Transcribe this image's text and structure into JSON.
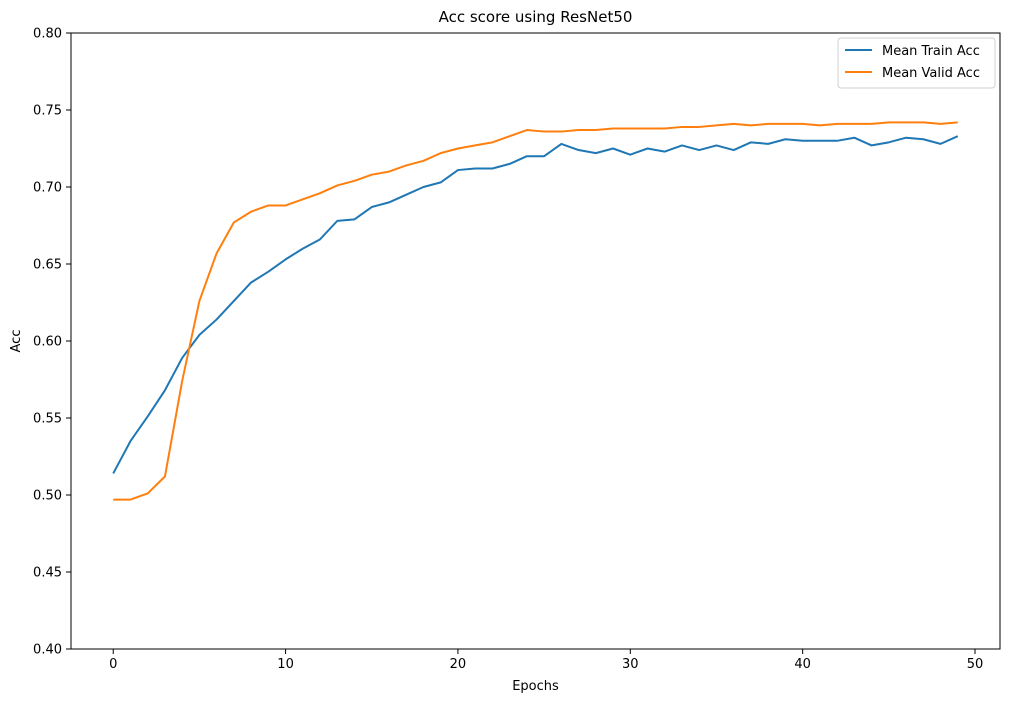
{
  "chart_data": {
    "type": "line",
    "title": "Acc score using ResNet50",
    "xlabel": "Epochs",
    "ylabel": "Acc",
    "xlim": [
      -2.45,
      51.45
    ],
    "ylim": [
      0.4,
      0.8
    ],
    "xticks": [
      0,
      10,
      20,
      30,
      40,
      50
    ],
    "yticks": [
      0.4,
      0.45,
      0.5,
      0.55,
      0.6,
      0.65,
      0.7,
      0.75,
      0.8
    ],
    "xtick_labels": [
      "0",
      "10",
      "20",
      "30",
      "40",
      "50"
    ],
    "ytick_labels": [
      "0.40",
      "0.45",
      "0.50",
      "0.55",
      "0.60",
      "0.65",
      "0.70",
      "0.75",
      "0.80"
    ],
    "grid": false,
    "legend_position": "top-right",
    "x": [
      0,
      1,
      2,
      3,
      4,
      5,
      6,
      7,
      8,
      9,
      10,
      11,
      12,
      13,
      14,
      15,
      16,
      17,
      18,
      19,
      20,
      21,
      22,
      23,
      24,
      25,
      26,
      27,
      28,
      29,
      30,
      31,
      32,
      33,
      34,
      35,
      36,
      37,
      38,
      39,
      40,
      41,
      42,
      43,
      44,
      45,
      46,
      47,
      48,
      49
    ],
    "series": [
      {
        "name": "Mean Train Acc",
        "color": "#1f77b4",
        "values": [
          0.514,
          0.535,
          0.551,
          0.568,
          0.589,
          0.604,
          0.614,
          0.626,
          0.638,
          0.645,
          0.653,
          0.66,
          0.666,
          0.678,
          0.679,
          0.687,
          0.69,
          0.695,
          0.7,
          0.703,
          0.711,
          0.712,
          0.712,
          0.715,
          0.72,
          0.72,
          0.728,
          0.724,
          0.722,
          0.725,
          0.721,
          0.725,
          0.723,
          0.727,
          0.724,
          0.727,
          0.724,
          0.729,
          0.728,
          0.731,
          0.73,
          0.73,
          0.73,
          0.732,
          0.727,
          0.729,
          0.732,
          0.731,
          0.728,
          0.733
        ]
      },
      {
        "name": "Mean Valid Acc",
        "color": "#ff7f0e",
        "values": [
          0.497,
          0.497,
          0.501,
          0.512,
          0.574,
          0.626,
          0.657,
          0.677,
          0.684,
          0.688,
          0.688,
          0.692,
          0.696,
          0.701,
          0.704,
          0.708,
          0.71,
          0.714,
          0.717,
          0.722,
          0.725,
          0.727,
          0.729,
          0.733,
          0.737,
          0.736,
          0.736,
          0.737,
          0.737,
          0.738,
          0.738,
          0.738,
          0.738,
          0.739,
          0.739,
          0.74,
          0.741,
          0.74,
          0.741,
          0.741,
          0.741,
          0.74,
          0.741,
          0.741,
          0.741,
          0.742,
          0.742,
          0.742,
          0.741,
          0.742
        ]
      }
    ]
  }
}
